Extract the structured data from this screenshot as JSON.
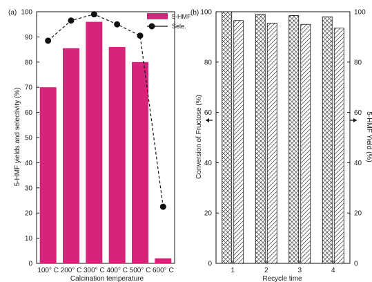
{
  "chart_data": [
    {
      "panel": "(a)",
      "type": "bar",
      "categories": [
        "100° C",
        "200° C",
        "300° C",
        "400° C",
        "500° C",
        "600° C"
      ],
      "xlabel": "Calcination temperature",
      "ylabel": "5-HMF yields and selectivity (%)",
      "ylim": [
        0,
        100
      ],
      "yticks": [
        0,
        10,
        20,
        30,
        40,
        50,
        60,
        70,
        80,
        90,
        100
      ],
      "legend_position": "top-right",
      "series": [
        {
          "name": "5-HMF",
          "type": "bar",
          "color": "#d6247a",
          "values": [
            70,
            85.5,
            96,
            86,
            80,
            2
          ]
        },
        {
          "name": "Sele.",
          "type": "line",
          "color": "#111111",
          "values": [
            88.5,
            96.5,
            99,
            95,
            90.5,
            22.5
          ]
        }
      ]
    },
    {
      "panel": "(b)",
      "type": "bar",
      "categories": [
        "1",
        "2",
        "3",
        "4"
      ],
      "xlabel": "Recycle time",
      "ylabel_left": "Conversion of Fructose (%)",
      "ylabel_right": "5-HMF Yield (%)",
      "ylim": [
        0,
        100
      ],
      "yticks": [
        0,
        20,
        40,
        60,
        80,
        100
      ],
      "series": [
        {
          "pattern": "crosshatch",
          "axis": "left",
          "values": [
            100,
            99,
            98.5,
            98
          ]
        },
        {
          "pattern": "diagonal",
          "axis": "right",
          "values": [
            96.5,
            95.5,
            95,
            93.5
          ]
        }
      ]
    }
  ]
}
